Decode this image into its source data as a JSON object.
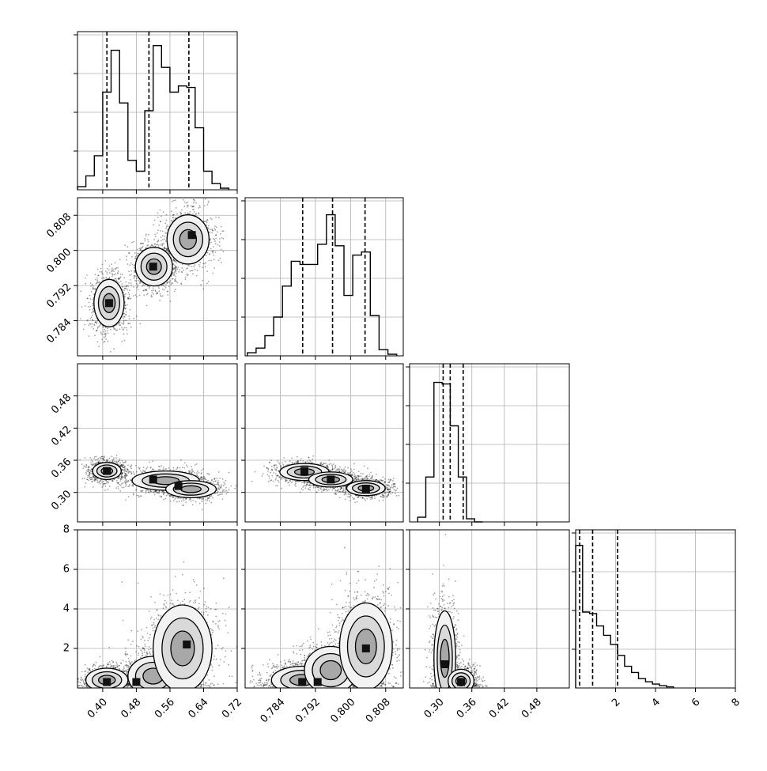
{
  "chart_data": {
    "type": "corner",
    "grid": true,
    "params": [
      {
        "range": [
          0.34,
          0.72
        ],
        "ticks": [
          "0.40",
          "0.48",
          "0.56",
          "0.64",
          "0.72"
        ],
        "quantiles": [
          0.41,
          0.51,
          0.605
        ],
        "hist": {
          "bin_edges": [
            0.34,
            0.36,
            0.38,
            0.4,
            0.42,
            0.44,
            0.46,
            0.48,
            0.5,
            0.52,
            0.54,
            0.56,
            0.58,
            0.6,
            0.62,
            0.64,
            0.66,
            0.68,
            0.7
          ],
          "counts": [
            0.02,
            0.09,
            0.22,
            0.63,
            0.9,
            0.56,
            0.19,
            0.12,
            0.51,
            0.93,
            0.79,
            0.63,
            0.67,
            0.66,
            0.4,
            0.12,
            0.04,
            0.01
          ]
        }
      },
      {
        "range": [
          0.776,
          0.812
        ],
        "ticks": [
          "0.784",
          "0.792",
          "0.800",
          "0.808"
        ],
        "quantiles": [
          0.7891,
          0.7959,
          0.8033
        ],
        "hist": {
          "bin_edges": [
            0.7765,
            0.7785,
            0.7805,
            0.7825,
            0.7845,
            0.7865,
            0.7885,
            0.7905,
            0.7925,
            0.7945,
            0.7965,
            0.7985,
            0.8005,
            0.8025,
            0.8045,
            0.8065,
            0.8085,
            0.8105
          ],
          "counts": [
            0.02,
            0.05,
            0.13,
            0.25,
            0.45,
            0.61,
            0.59,
            0.59,
            0.72,
            0.91,
            0.71,
            0.39,
            0.65,
            0.67,
            0.26,
            0.04,
            0.01
          ]
        }
      },
      {
        "range": [
          0.245,
          0.54
        ],
        "ticks": [
          "0.30",
          "0.36",
          "0.42",
          "0.48"
        ],
        "quantiles": [
          0.307,
          0.32,
          0.344
        ],
        "hist": {
          "bin_edges": [
            0.26,
            0.275,
            0.29,
            0.305,
            0.32,
            0.335,
            0.35,
            0.365,
            0.38
          ],
          "counts": [
            0.03,
            0.29,
            0.9,
            0.89,
            0.62,
            0.29,
            0.02,
            0.0
          ]
        }
      },
      {
        "range": [
          0,
          8
        ],
        "ticks": [
          "2",
          "4",
          "6",
          "8"
        ],
        "quantiles": [
          0.2,
          0.85,
          2.1
        ],
        "hist": {
          "bin_edges": [
            0.0,
            0.35,
            0.7,
            1.05,
            1.4,
            1.75,
            2.1,
            2.45,
            2.8,
            3.15,
            3.5,
            3.85,
            4.2,
            4.55,
            4.9
          ],
          "counts": [
            0.92,
            0.49,
            0.48,
            0.4,
            0.34,
            0.28,
            0.21,
            0.14,
            0.1,
            0.06,
            0.04,
            0.025,
            0.015,
            0.007
          ]
        }
      }
    ],
    "pair_ylim": {
      "1": [
        0.776,
        0.812
      ],
      "2": [
        0.245,
        0.54
      ],
      "3": [
        0,
        8
      ]
    },
    "pair_yticks": {
      "1": [
        "0.784",
        "0.792",
        "0.800",
        "0.808"
      ],
      "2": [
        "0.30",
        "0.36",
        "0.42",
        "0.48"
      ],
      "3": [
        "2",
        "4",
        "6",
        "8"
      ]
    },
    "pairs": [
      {
        "row": 1,
        "col": 0,
        "blobs": [
          {
            "cx": 0.415,
            "cy": 0.788,
            "sx": 0.018,
            "sy": 0.0027
          },
          {
            "cx": 0.522,
            "cy": 0.7963,
            "sx": 0.022,
            "sy": 0.0022
          },
          {
            "cx": 0.603,
            "cy": 0.8025,
            "sx": 0.025,
            "sy": 0.0028
          }
        ],
        "dark_cells": [
          [
            0.415,
            0.788
          ],
          [
            0.52,
            0.7963
          ],
          [
            0.612,
            0.8035
          ]
        ]
      },
      {
        "row": 2,
        "col": 0,
        "blobs": [
          {
            "cx": 0.41,
            "cy": 0.34,
            "sx": 0.017,
            "sy": 0.008
          },
          {
            "cx": 0.55,
            "cy": 0.322,
            "sx": 0.04,
            "sy": 0.009
          },
          {
            "cx": 0.61,
            "cy": 0.306,
            "sx": 0.03,
            "sy": 0.008
          }
        ],
        "dark_cells": [
          [
            0.41,
            0.34
          ],
          [
            0.52,
            0.324
          ],
          [
            0.58,
            0.312
          ]
        ]
      },
      {
        "row": 2,
        "col": 1,
        "blobs": [
          {
            "cx": 0.7895,
            "cy": 0.338,
            "sx": 0.0028,
            "sy": 0.008
          },
          {
            "cx": 0.7955,
            "cy": 0.324,
            "sx": 0.0025,
            "sy": 0.007
          },
          {
            "cx": 0.8035,
            "cy": 0.308,
            "sx": 0.0022,
            "sy": 0.007
          }
        ],
        "dark_cells": [
          [
            0.7895,
            0.34
          ],
          [
            0.7955,
            0.324
          ],
          [
            0.8035,
            0.307
          ]
        ]
      },
      {
        "row": 3,
        "col": 0,
        "blobs": [
          {
            "cx": 0.41,
            "cy": 0.4,
            "sx": 0.025,
            "sy": 0.3
          },
          {
            "cx": 0.52,
            "cy": 0.6,
            "sx": 0.03,
            "sy": 0.5
          },
          {
            "cx": 0.59,
            "cy": 2.0,
            "sx": 0.035,
            "sy": 1.1
          }
        ],
        "dark_cells": [
          [
            0.41,
            0.3
          ],
          [
            0.48,
            0.3
          ],
          [
            0.6,
            2.2
          ]
        ]
      },
      {
        "row": 3,
        "col": 1,
        "blobs": [
          {
            "cx": 0.789,
            "cy": 0.4,
            "sx": 0.0035,
            "sy": 0.35
          },
          {
            "cx": 0.7955,
            "cy": 0.9,
            "sx": 0.003,
            "sy": 0.6
          },
          {
            "cx": 0.8035,
            "cy": 2.1,
            "sx": 0.003,
            "sy": 1.1
          }
        ],
        "dark_cells": [
          [
            0.789,
            0.3
          ],
          [
            0.7925,
            0.3
          ],
          [
            0.8035,
            2.0
          ]
        ]
      },
      {
        "row": 3,
        "col": 2,
        "blobs": [
          {
            "cx": 0.31,
            "cy": 1.5,
            "sx": 0.01,
            "sy": 1.2
          },
          {
            "cx": 0.34,
            "cy": 0.35,
            "sx": 0.012,
            "sy": 0.3
          }
        ],
        "dark_cells": [
          [
            0.34,
            0.3
          ],
          [
            0.31,
            1.2
          ]
        ]
      }
    ]
  }
}
